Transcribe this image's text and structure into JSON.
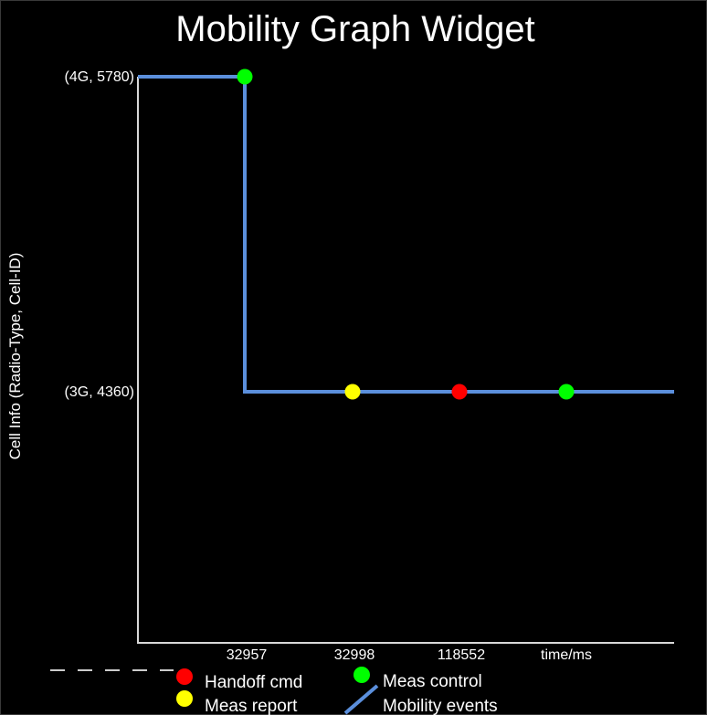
{
  "chart_data": {
    "type": "line",
    "title": "Mobility Graph Widget",
    "xlabel": "time/ms",
    "ylabel": "Cell Info (Radio-Type, Cell-ID)",
    "y_categories": [
      "(3G, 4360)",
      "(4G, 5780)"
    ],
    "x_categories": [
      "32957",
      "32998",
      "118552"
    ],
    "mobility_events": {
      "name": "Mobility events",
      "color": "#5b8fdc",
      "points": [
        {
          "x": "start",
          "y": "(4G, 5780)"
        },
        {
          "x": "32957",
          "y": "(4G, 5780)"
        },
        {
          "x": "32957",
          "y": "(3G, 4360)"
        },
        {
          "x": "end",
          "y": "(3G, 4360)"
        }
      ]
    },
    "markers": [
      {
        "type": "Meas control",
        "x": "32957",
        "y": "(4G, 5780)"
      },
      {
        "type": "Meas report",
        "x": "32998",
        "y": "(3G, 4360)"
      },
      {
        "type": "Handoff cmd",
        "x": "118552",
        "y": "(3G, 4360)"
      },
      {
        "type": "Meas control",
        "x": "time/ms",
        "y": "(3G, 4360)"
      }
    ],
    "legend": [
      {
        "label": "Handoff cmd",
        "color": "#ff0000",
        "shape": "dot"
      },
      {
        "label": "Meas control",
        "color": "#00ff00",
        "shape": "dot"
      },
      {
        "label": "Meas report",
        "color": "#ffff00",
        "shape": "dot"
      },
      {
        "label": "Mobility events",
        "color": "#5b8fdc",
        "shape": "line"
      }
    ],
    "legend_position": "bottom",
    "grid": false,
    "colors": {
      "background": "#000000",
      "axis": "#d8d8d8",
      "text": "#ffffff"
    }
  }
}
